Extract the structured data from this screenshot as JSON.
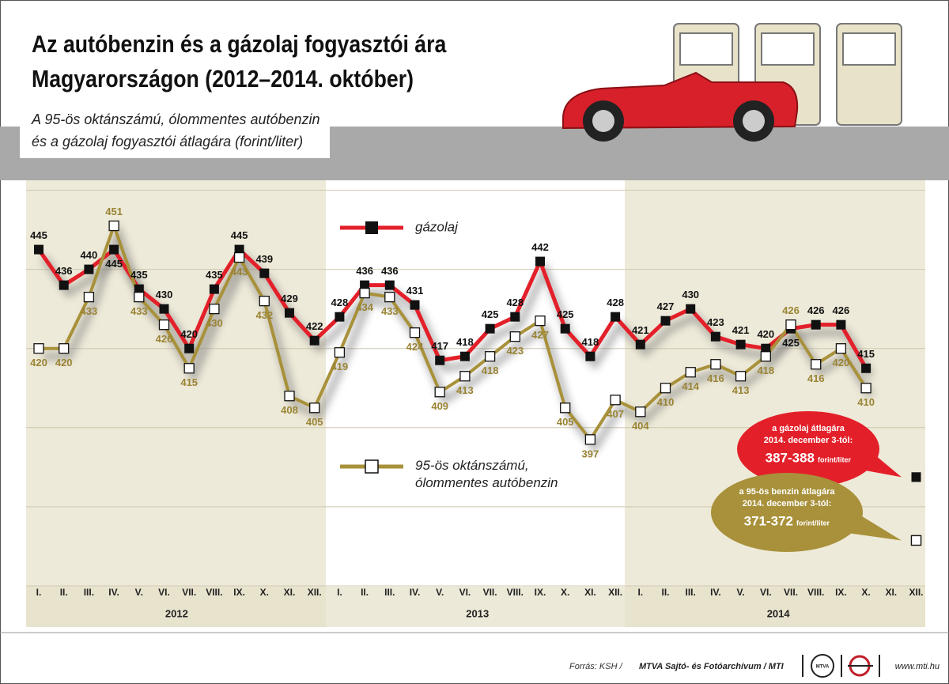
{
  "chart_data": {
    "type": "line",
    "title": [
      "Az autóbenzin és a gázolaj fogyasztói ára",
      "Magyarországon (2012–2014. október)"
    ],
    "subtitle": [
      "A 95-ös oktánszámú, ólommentes autóbenzin",
      "és a gázolaj fogyasztói átlagára (forint/liter)"
    ],
    "categories": [
      "I.",
      "II.",
      "III.",
      "IV.",
      "V.",
      "VI.",
      "VII.",
      "VIII.",
      "IX.",
      "X.",
      "XI.",
      "XII.",
      "I.",
      "II.",
      "III.",
      "IV.",
      "V.",
      "VI.",
      "VII.",
      "VIII.",
      "IX.",
      "X.",
      "XI.",
      "XII.",
      "I.",
      "II.",
      "III.",
      "IV.",
      "V.",
      "VI.",
      "VII.",
      "VIII.",
      "IX.",
      "X.",
      "XI.",
      "XII."
    ],
    "years": [
      "2012",
      "2013",
      "2014"
    ],
    "series": [
      {
        "name": "gázolaj",
        "color": "#e3202a",
        "values": [
          445,
          436,
          440,
          445,
          435,
          430,
          420,
          435,
          445,
          439,
          429,
          422,
          428,
          436,
          436,
          431,
          417,
          418,
          425,
          428,
          442,
          425,
          418,
          428,
          421,
          427,
          430,
          423,
          421,
          420,
          425,
          426,
          426,
          415,
          null,
          387.5
        ]
      },
      {
        "name": "95-ös oktánszámú, ólommentes autóbenzin",
        "color": "#a8913a",
        "values": [
          420,
          420,
          433,
          451,
          433,
          426,
          415,
          430,
          443,
          432,
          408,
          405,
          419,
          434,
          433,
          424,
          409,
          413,
          418,
          423,
          427,
          405,
          397,
          407,
          404,
          410,
          414,
          416,
          413,
          418,
          426,
          416,
          420,
          410,
          null,
          371.5
        ]
      }
    ],
    "ylim": [
      360,
      462.5
    ],
    "yticks": [
      360,
      380,
      400,
      420,
      440,
      460
    ],
    "grid": true,
    "annotations": [
      {
        "lines": [
          "a gázolaj átlagára",
          "2014. december 3-tól:"
        ],
        "price": "387-388",
        "unit": "forint/liter",
        "color": "#e3202a"
      },
      {
        "lines": [
          "a 95-ös benzin átlagára",
          "2014. december 3-tól:"
        ],
        "price": "371-372",
        "unit": "forint/liter",
        "color": "#a8913a"
      }
    ],
    "source": [
      "Forrás: KSH /",
      "MTVA Sajtó- és Fotóarchívum / MTI"
    ],
    "logo_text": "MTVA",
    "website": "www.mti.hu"
  }
}
